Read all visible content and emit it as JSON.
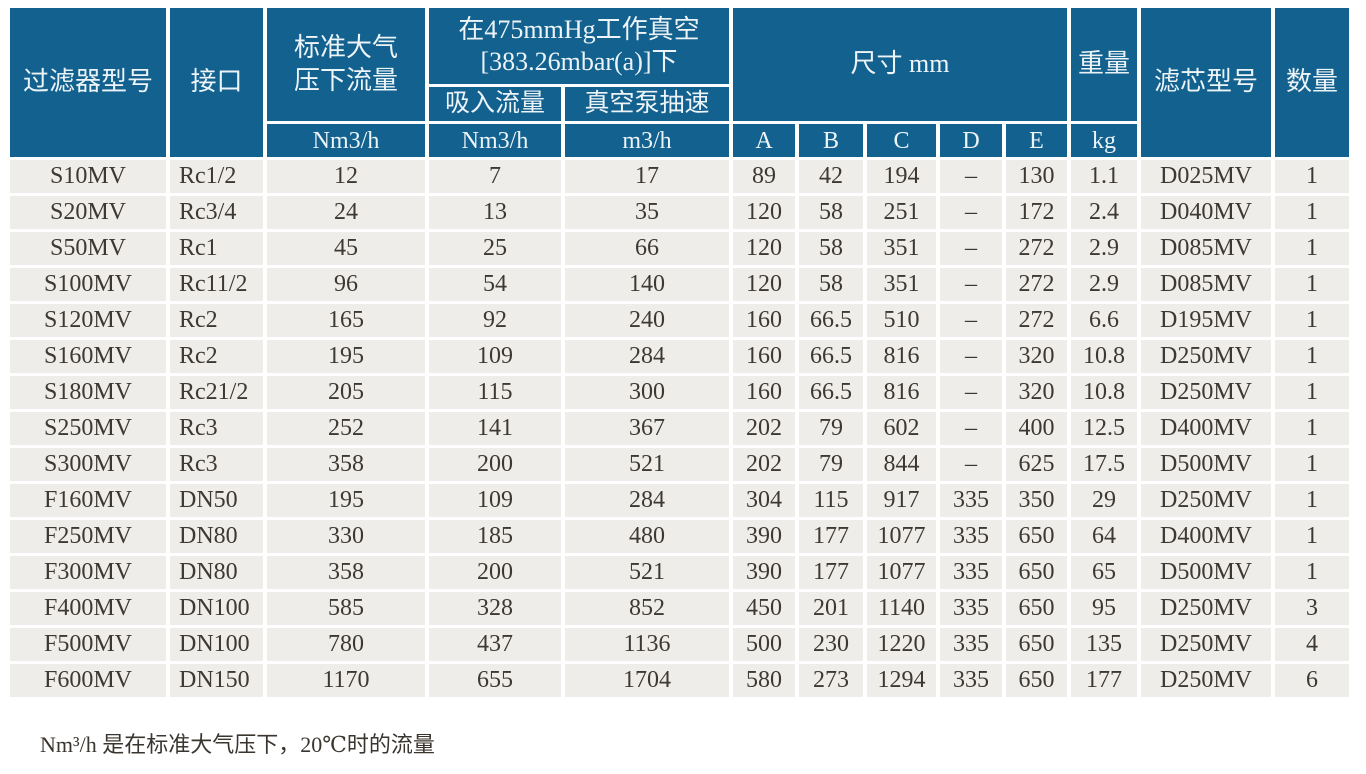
{
  "table": {
    "header": {
      "filter_model": "过滤器型号",
      "port": "接口",
      "std_flow": "标准大气\n压下流量",
      "vacuum_group": "在475mmHg工作真空\n[383.26mbar(a)]下",
      "suction_flow": "吸入流量",
      "pump_speed": "真空泵抽速",
      "dimensions": "尺寸 mm",
      "weight": "重量",
      "element_model": "滤芯型号",
      "qty": "数量",
      "unit_nm3h_std": "Nm3/h",
      "unit_nm3h_suction": "Nm3/h",
      "unit_m3h": "m3/h",
      "dim_a": "A",
      "dim_b": "B",
      "dim_c": "C",
      "dim_d": "D",
      "dim_e": "E",
      "unit_kg": "kg"
    },
    "field_names": [
      "model",
      "port",
      "std-flow",
      "suction-flow",
      "pump-speed",
      "dim-a",
      "dim-b",
      "dim-c",
      "dim-d",
      "dim-e",
      "weight",
      "element-model",
      "qty"
    ],
    "rows": [
      [
        "S10MV",
        "Rc1/2",
        "12",
        "7",
        "17",
        "89",
        "42",
        "194",
        "–",
        "130",
        "1.1",
        "D025MV",
        "1"
      ],
      [
        "S20MV",
        "Rc3/4",
        "24",
        "13",
        "35",
        "120",
        "58",
        "251",
        "–",
        "172",
        "2.4",
        "D040MV",
        "1"
      ],
      [
        "S50MV",
        "Rc1",
        "45",
        "25",
        "66",
        "120",
        "58",
        "351",
        "–",
        "272",
        "2.9",
        "D085MV",
        "1"
      ],
      [
        "S100MV",
        "Rc11/2",
        "96",
        "54",
        "140",
        "120",
        "58",
        "351",
        "–",
        "272",
        "2.9",
        "D085MV",
        "1"
      ],
      [
        "S120MV",
        "Rc2",
        "165",
        "92",
        "240",
        "160",
        "66.5",
        "510",
        "–",
        "272",
        "6.6",
        "D195MV",
        "1"
      ],
      [
        "S160MV",
        "Rc2",
        "195",
        "109",
        "284",
        "160",
        "66.5",
        "816",
        "–",
        "320",
        "10.8",
        "D250MV",
        "1"
      ],
      [
        "S180MV",
        "Rc21/2",
        "205",
        "115",
        "300",
        "160",
        "66.5",
        "816",
        "–",
        "320",
        "10.8",
        "D250MV",
        "1"
      ],
      [
        "S250MV",
        "Rc3",
        "252",
        "141",
        "367",
        "202",
        "79",
        "602",
        "–",
        "400",
        "12.5",
        "D400MV",
        "1"
      ],
      [
        "S300MV",
        "Rc3",
        "358",
        "200",
        "521",
        "202",
        "79",
        "844",
        "–",
        "625",
        "17.5",
        "D500MV",
        "1"
      ],
      [
        "F160MV",
        "DN50",
        "195",
        "109",
        "284",
        "304",
        "115",
        "917",
        "335",
        "350",
        "29",
        "D250MV",
        "1"
      ],
      [
        "F250MV",
        "DN80",
        "330",
        "185",
        "480",
        "390",
        "177",
        "1077",
        "335",
        "650",
        "64",
        "D400MV",
        "1"
      ],
      [
        "F300MV",
        "DN80",
        "358",
        "200",
        "521",
        "390",
        "177",
        "1077",
        "335",
        "650",
        "65",
        "D500MV",
        "1"
      ],
      [
        "F400MV",
        "DN100",
        "585",
        "328",
        "852",
        "450",
        "201",
        "1140",
        "335",
        "650",
        "95",
        "D250MV",
        "3"
      ],
      [
        "F500MV",
        "DN100",
        "780",
        "437",
        "1136",
        "500",
        "230",
        "1220",
        "335",
        "650",
        "135",
        "D250MV",
        "4"
      ],
      [
        "F600MV",
        "DN150",
        "1170",
        "655",
        "1704",
        "580",
        "273",
        "1294",
        "335",
        "650",
        "177",
        "D250MV",
        "6"
      ]
    ]
  },
  "note": "Nm³/h 是在标准大气压下，20℃时的流量",
  "colors": {
    "header_bg": "#12618f",
    "header_text": "#edf4f8",
    "row_bg": "#efedea",
    "body_text": "#3d3832"
  }
}
